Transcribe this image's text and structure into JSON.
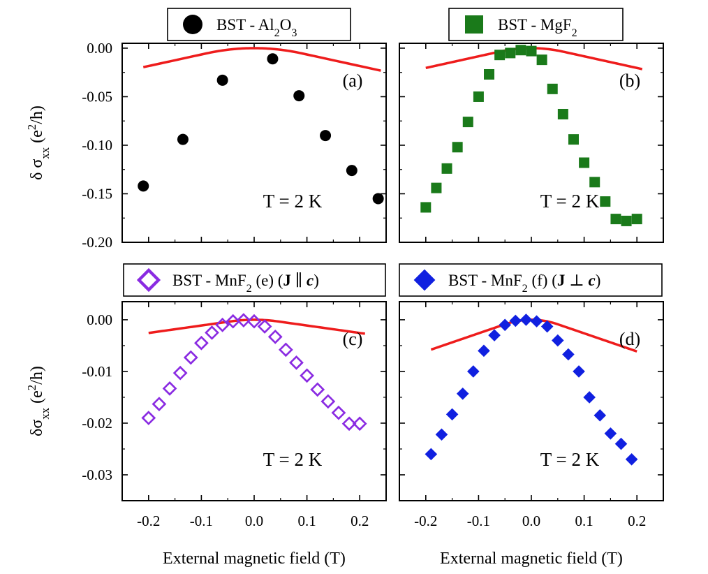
{
  "chart_data": [
    {
      "type": "line",
      "panel": "(a)",
      "legend": {
        "text_parts": [
          "BST - Al",
          "2",
          "O",
          "3"
        ],
        "marker": "filled-circle",
        "color": "#000000"
      },
      "annotation": "T = 2 K",
      "xlabel": "External magnetic field (T)",
      "ylabel": {
        "main": "δ σ",
        "sub": "xx",
        "unit_pre": " (e",
        "unit_sup": "2",
        "unit_post": "/h)"
      },
      "xlim": [
        -0.25,
        0.25
      ],
      "ylim": [
        -0.2,
        0.005
      ],
      "xticks": [
        -0.2,
        -0.1,
        0.0,
        0.1,
        0.2
      ],
      "yticks": [
        0.0,
        -0.05,
        -0.1,
        -0.15,
        -0.2
      ],
      "ytick_labels": [
        "0.00",
        "-0.05",
        "-0.10",
        "-0.15",
        "-0.20"
      ],
      "fit": {
        "shape": "quadratic-to-linear",
        "a": 0.66,
        "xc": 0.09,
        "x_range": [
          -0.21,
          0.24
        ]
      },
      "series": [
        {
          "name": "BST - Al2O3",
          "x": [
            -0.21,
            -0.135,
            -0.06,
            0.035,
            0.085,
            0.135,
            0.185,
            0.235
          ],
          "y": [
            -0.142,
            -0.094,
            -0.033,
            -0.011,
            -0.049,
            -0.09,
            -0.126,
            -0.155
          ]
        }
      ]
    },
    {
      "type": "line",
      "panel": "(b)",
      "legend": {
        "text_parts": [
          "BST - MgF",
          "2"
        ],
        "marker": "filled-square",
        "color": "#1a7a1a"
      },
      "annotation": "T = 2 K",
      "xlabel": "External magnetic field (T)",
      "xlim": [
        -0.25,
        0.25
      ],
      "ylim": [
        -0.2,
        0.005
      ],
      "xticks": [
        -0.2,
        -0.1,
        0.0,
        0.1,
        0.2
      ],
      "yticks": [
        0.0,
        -0.05,
        -0.1,
        -0.15,
        -0.2
      ],
      "fit": {
        "shape": "quadratic-to-linear",
        "a": 1.0,
        "xc": 0.06,
        "x_range": [
          -0.2,
          0.21
        ]
      },
      "series": [
        {
          "name": "BST - MgF2",
          "x": [
            -0.2,
            -0.18,
            -0.16,
            -0.14,
            -0.12,
            -0.1,
            -0.08,
            -0.06,
            -0.04,
            -0.02,
            0.0,
            0.02,
            0.04,
            0.06,
            0.08,
            0.1,
            0.12,
            0.14,
            0.16,
            0.18,
            0.2
          ],
          "y": [
            -0.164,
            -0.144,
            -0.124,
            -0.102,
            -0.076,
            -0.05,
            -0.027,
            -0.007,
            -0.005,
            -0.002,
            -0.003,
            -0.012,
            -0.042,
            -0.068,
            -0.094,
            -0.118,
            -0.138,
            -0.158,
            -0.176,
            -0.178,
            -0.176
          ]
        }
      ]
    },
    {
      "type": "line",
      "panel": "(c)",
      "legend": {
        "text_parts": [
          "BST - MnF",
          "2",
          " (e) (",
          "J",
          " ∥ ",
          "c",
          ")"
        ],
        "marker": "open-diamond",
        "color": "#8a2be2"
      },
      "annotation": "T = 2 K",
      "xlabel": "External magnetic field (T)",
      "ylabel": {
        "main": "δσ",
        "sub": "xx",
        "unit_pre": " (e",
        "unit_sup": "2",
        "unit_post": "/h)"
      },
      "xlim": [
        -0.25,
        0.25
      ],
      "ylim": [
        -0.035,
        0.0035
      ],
      "xticks": [
        -0.2,
        -0.1,
        0.0,
        0.1,
        0.2
      ],
      "yticks": [
        0.0,
        -0.01,
        -0.02,
        -0.03
      ],
      "ytick_labels": [
        "0.00",
        "-0.01",
        "-0.02",
        "-0.03"
      ],
      "fit": {
        "shape": "quadratic-to-linear",
        "a": 0.16,
        "xc": 0.045,
        "x_range": [
          -0.2,
          0.21
        ]
      },
      "series": [
        {
          "name": "BST - MnF2 (J || c)",
          "x": [
            -0.2,
            -0.18,
            -0.16,
            -0.14,
            -0.12,
            -0.1,
            -0.08,
            -0.06,
            -0.04,
            -0.02,
            0.0,
            0.02,
            0.04,
            0.06,
            0.08,
            0.1,
            0.12,
            0.14,
            0.16,
            0.18,
            0.2
          ],
          "y": [
            -0.019,
            -0.0163,
            -0.0133,
            -0.0103,
            -0.0073,
            -0.0045,
            -0.0025,
            -0.001,
            -0.0003,
            -0.0001,
            -0.0003,
            -0.0013,
            -0.0033,
            -0.0058,
            -0.0083,
            -0.0108,
            -0.0135,
            -0.0158,
            -0.018,
            -0.0201,
            -0.0201
          ]
        }
      ]
    },
    {
      "type": "line",
      "panel": "(d)",
      "legend": {
        "text_parts": [
          "BST - MnF",
          "2",
          " (f) (",
          "J",
          " ⊥ ",
          "c",
          ")"
        ],
        "marker": "filled-diamond",
        "color": "#1020e0"
      },
      "annotation": "T = 2 K",
      "xlabel": "External magnetic field (T)",
      "xlim": [
        -0.25,
        0.25
      ],
      "ylim": [
        -0.035,
        0.0035
      ],
      "xticks": [
        -0.2,
        -0.1,
        0.0,
        0.1,
        0.2
      ],
      "yticks": [
        0.0,
        -0.01,
        -0.02,
        -0.03
      ],
      "fit": {
        "shape": "quadratic-to-linear",
        "a": 0.35,
        "xc": 0.05,
        "x_range": [
          -0.19,
          0.2
        ]
      },
      "series": [
        {
          "name": "BST - MnF2 (J ⊥ c)",
          "x": [
            -0.19,
            -0.17,
            -0.15,
            -0.13,
            -0.11,
            -0.09,
            -0.07,
            -0.05,
            -0.03,
            -0.01,
            0.01,
            0.03,
            0.05,
            0.07,
            0.09,
            0.11,
            0.13,
            0.15,
            0.17,
            0.19
          ],
          "y": [
            -0.026,
            -0.0222,
            -0.0183,
            -0.0143,
            -0.01,
            -0.006,
            -0.003,
            -0.001,
            -0.0002,
            0.0,
            -0.0003,
            -0.0013,
            -0.004,
            -0.0067,
            -0.01,
            -0.015,
            -0.0185,
            -0.022,
            -0.024,
            -0.027
          ]
        }
      ]
    }
  ]
}
